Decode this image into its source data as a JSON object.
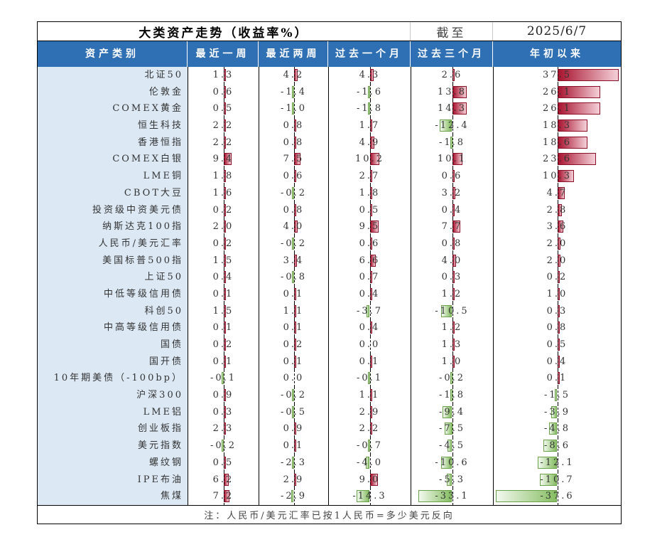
{
  "title": "大类资产走势（收益率%）",
  "as_of_label": "截至",
  "as_of_date": "2025/6/7",
  "headers": [
    "资产类别",
    "最近一周",
    "最近两周",
    "过去一个月",
    "过去三个月",
    "年初以来"
  ],
  "rows": [
    {
      "name": "北证50",
      "values": [
        1.3,
        4.2,
        4.3,
        2.6,
        37.5
      ]
    },
    {
      "name": "伦敦金",
      "values": [
        0.6,
        -1.4,
        -1.6,
        13.8,
        26.1
      ]
    },
    {
      "name": "COMEX黄金",
      "values": [
        0.5,
        -1.0,
        -1.8,
        14.3,
        26.1
      ]
    },
    {
      "name": "恒生科技",
      "values": [
        2.2,
        0.8,
        1.7,
        -12.4,
        18.3
      ]
    },
    {
      "name": "香港恒指",
      "values": [
        2.2,
        0.8,
        4.9,
        -1.8,
        18.6
      ]
    },
    {
      "name": "COMEX白银",
      "values": [
        9.4,
        7.5,
        10.2,
        10.1,
        23.6
      ]
    },
    {
      "name": "LME铜",
      "values": [
        1.8,
        0.6,
        2.7,
        0.6,
        10.3
      ]
    },
    {
      "name": "CBOT大豆",
      "values": [
        1.6,
        -0.2,
        1.8,
        3.2,
        4.7
      ]
    },
    {
      "name": "投资级中资美元债",
      "values": [
        0.2,
        0.8,
        0.5,
        0.4,
        2.8
      ]
    },
    {
      "name": "纳斯达克100指",
      "values": [
        2.0,
        4.0,
        9.5,
        7.7,
        3.6
      ]
    },
    {
      "name": "人民币/美元汇率",
      "values": [
        0.2,
        -0.2,
        0.6,
        0.8,
        2.0
      ]
    },
    {
      "name": "美国标普500指",
      "values": [
        1.5,
        3.4,
        6.6,
        4.0,
        2.0
      ]
    },
    {
      "name": "上证50",
      "values": [
        0.4,
        -0.8,
        0.7,
        0.3,
        0.2
      ]
    },
    {
      "name": "中低等级信用债",
      "values": [
        0.1,
        0.1,
        0.4,
        1.2,
        1.0
      ]
    },
    {
      "name": "科创50",
      "values": [
        1.5,
        1.1,
        -3.7,
        -10.5,
        0.3
      ]
    },
    {
      "name": "中高等级信用债",
      "values": [
        0.1,
        0.1,
        0.4,
        1.2,
        0.8
      ]
    },
    {
      "name": "国债",
      "values": [
        0.2,
        0.2,
        0.0,
        1.3,
        0.5
      ]
    },
    {
      "name": "国开债",
      "values": [
        0.1,
        0.1,
        0.1,
        1.0,
        0.4
      ]
    },
    {
      "name": "10年期美债（-100bp）",
      "values": [
        -0.1,
        0.0,
        -0.1,
        -0.2,
        0.1
      ]
    },
    {
      "name": "沪深300",
      "values": [
        0.9,
        -0.2,
        1.1,
        -1.8,
        -1.5
      ]
    },
    {
      "name": "LME铝",
      "values": [
        0.3,
        -0.5,
        2.9,
        -9.4,
        -3.9
      ]
    },
    {
      "name": "创业板指",
      "values": [
        2.3,
        0.9,
        2.2,
        -7.5,
        -4.8
      ]
    },
    {
      "name": "美元指数",
      "values": [
        -0.2,
        0.1,
        -0.7,
        -4.5,
        -8.6
      ]
    },
    {
      "name": "螺纹钢",
      "values": [
        0.5,
        -2.3,
        -4.0,
        -10.6,
        -12.1
      ]
    },
    {
      "name": "IPE布油",
      "values": [
        6.2,
        2.9,
        9.0,
        -5.3,
        -10.7
      ]
    },
    {
      "name": "焦煤",
      "values": [
        7.2,
        -2.9,
        -14.3,
        -33.1,
        -37.6
      ]
    }
  ],
  "footnote": "注：人民币/美元汇率已按1人民币=多少美元反向",
  "colors": {
    "header_bg": "#2f6fb3",
    "label_bg": "#dce9f5",
    "positive": "#a8132f",
    "negative": "#86bd62"
  }
}
